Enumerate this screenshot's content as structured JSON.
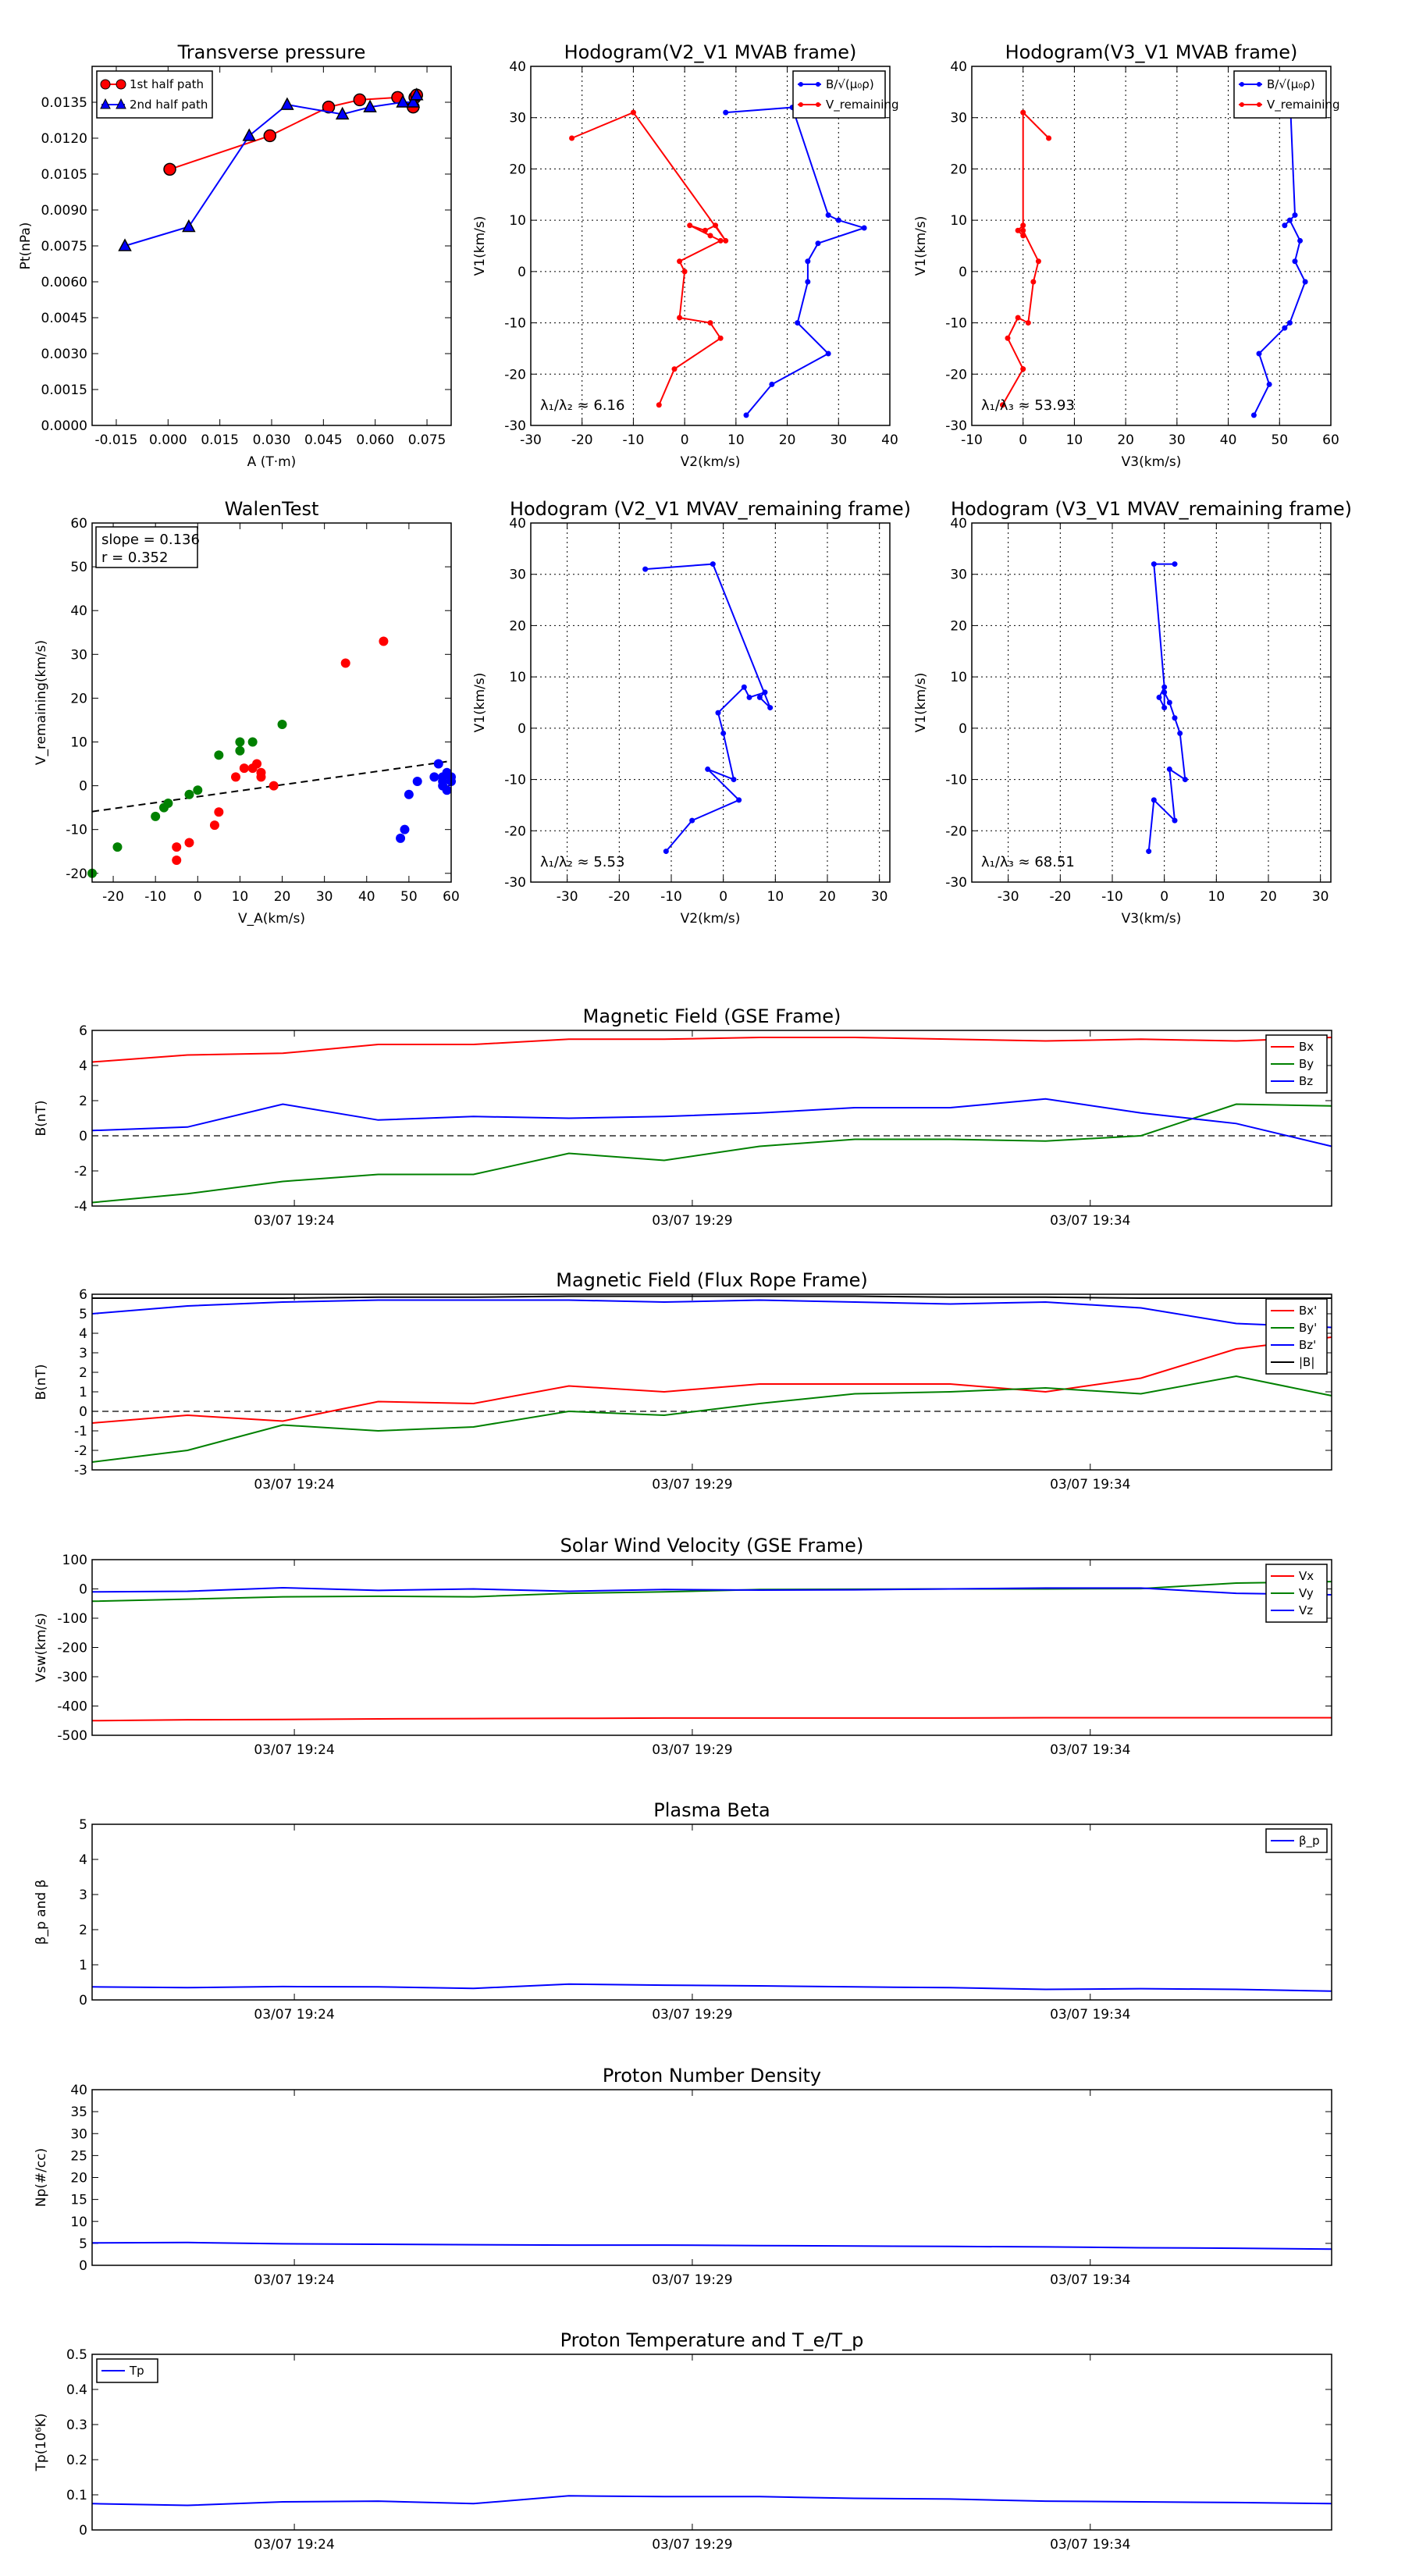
{
  "colors": {
    "red": "#ff0000",
    "green": "#008000",
    "blue": "#0000ff",
    "black": "#000000"
  },
  "time_ticks": [
    "03/07 19:24",
    "03/07 19:29",
    "03/07 19:34"
  ],
  "chart_data": [
    {
      "id": "tp",
      "type": "line",
      "title": "Transverse pressure",
      "xlabel": "A (T·m)",
      "ylabel": "Pt(nPa)",
      "xlim": [
        -0.022,
        0.082
      ],
      "ylim": [
        0,
        0.015
      ],
      "xticks": [
        "-0.015",
        "0.000",
        "0.015",
        "0.030",
        "0.045",
        "0.060",
        "0.075"
      ],
      "xtick_values": [
        -0.015,
        0,
        0.015,
        0.03,
        0.045,
        0.06,
        0.075
      ],
      "yticks": [
        "0.0000",
        "0.0015",
        "0.0030",
        "0.0045",
        "0.0060",
        "0.0075",
        "0.0090",
        "0.0105",
        "0.0120",
        "0.0135"
      ],
      "ytick_values": [
        0,
        0.0015,
        0.003,
        0.0045,
        0.006,
        0.0075,
        0.009,
        0.0105,
        0.012,
        0.0135
      ],
      "legend": "upper-left",
      "series": [
        {
          "name": "1st half path",
          "color": "red",
          "marker": "circle",
          "x": [
            0.0005,
            0.0295,
            0.0465,
            0.0555,
            0.0665,
            0.071,
            0.0715,
            0.072
          ],
          "y": [
            0.0107,
            0.0121,
            0.0133,
            0.0136,
            0.0137,
            0.0133,
            0.0137,
            0.0138
          ]
        },
        {
          "name": "2nd half path",
          "color": "blue",
          "marker": "triangle",
          "x": [
            -0.0125,
            0.006,
            0.0235,
            0.0345,
            0.0505,
            0.0585,
            0.068,
            0.071,
            0.072
          ],
          "y": [
            0.0075,
            0.0083,
            0.0121,
            0.0134,
            0.013,
            0.0133,
            0.0135,
            0.0135,
            0.0138
          ]
        }
      ]
    },
    {
      "id": "h1",
      "type": "line",
      "title": "Hodogram(V2_V1 MVAB frame)",
      "xlabel": "V2(km/s)",
      "ylabel": "V1(km/s)",
      "xlim": [
        -30,
        40
      ],
      "ylim": [
        -30,
        40
      ],
      "xtick_values": [
        -30,
        -20,
        -10,
        0,
        10,
        20,
        30,
        40
      ],
      "ytick_values": [
        -30,
        -20,
        -10,
        0,
        10,
        20,
        30,
        40
      ],
      "grid": true,
      "legend": "upper-right",
      "annotation": "λ₁/λ₂ ≈ 6.16",
      "series": [
        {
          "name": "B/√(μ₀ρ)",
          "color": "blue",
          "marker": "dot",
          "x": [
            8,
            21,
            28,
            30,
            35,
            26,
            24,
            24,
            22,
            28,
            17,
            12
          ],
          "y": [
            31,
            32,
            11,
            10,
            8.5,
            5.5,
            2,
            -2,
            -10,
            -16,
            -22,
            -28
          ]
        },
        {
          "name": "V_remaining",
          "color": "red",
          "marker": "dot",
          "x": [
            -22,
            -10,
            8,
            6,
            4,
            1,
            5,
            7,
            -1,
            0,
            -1,
            5,
            7,
            -2,
            -5
          ],
          "y": [
            26,
            31,
            6,
            9,
            8,
            9,
            7,
            6,
            2,
            0,
            -9,
            -10,
            -13,
            -19,
            -26
          ]
        }
      ]
    },
    {
      "id": "h2",
      "type": "line",
      "title": "Hodogram(V3_V1 MVAB frame)",
      "xlabel": "V3(km/s)",
      "ylabel": "V1(km/s)",
      "xlim": [
        -10,
        60
      ],
      "ylim": [
        -30,
        40
      ],
      "xtick_values": [
        -10,
        0,
        10,
        20,
        30,
        40,
        50,
        60
      ],
      "ytick_values": [
        -30,
        -20,
        -10,
        0,
        10,
        20,
        30,
        40
      ],
      "grid": true,
      "legend": "upper-right",
      "annotation": "λ₁/λ₃ ≈ 53.93",
      "series": [
        {
          "name": "B/√(μ₀ρ)",
          "color": "blue",
          "marker": "dot",
          "x": [
            52,
            53,
            51,
            52,
            54,
            53,
            55,
            52,
            51,
            46,
            48,
            45
          ],
          "y": [
            35,
            11,
            9,
            10,
            6,
            2,
            -2,
            -10,
            -11,
            -16,
            -22,
            -28
          ]
        },
        {
          "name": "V_remaining",
          "color": "red",
          "marker": "dot",
          "x": [
            5,
            0,
            0,
            -1,
            0,
            0,
            3,
            2,
            1,
            -1,
            -3,
            0,
            -4
          ],
          "y": [
            26,
            31,
            9,
            8,
            7,
            8,
            2,
            -2,
            -10,
            -9,
            -13,
            -19,
            -26
          ]
        }
      ]
    },
    {
      "id": "walen",
      "type": "scatter",
      "title": "WalenTest",
      "xlabel": "V_A(km/s)",
      "ylabel": "V_remaining(km/s)",
      "xlim": [
        -25,
        60
      ],
      "ylim": [
        -22,
        60
      ],
      "xtick_values": [
        -20,
        -10,
        0,
        10,
        20,
        30,
        40,
        50,
        60
      ],
      "ytick_values": [
        -20,
        -10,
        0,
        10,
        20,
        30,
        40,
        50,
        60
      ],
      "fit": {
        "slope": 0.136,
        "intercept": -2.5,
        "slope_label": "slope = 0.136",
        "r_label": "r = 0.352"
      },
      "series": [
        {
          "color": "green",
          "x": [
            -25,
            -19,
            -10,
            -8,
            -7,
            -2,
            0,
            5,
            10,
            10,
            13,
            20
          ],
          "y": [
            -20,
            -14,
            -7,
            -5,
            -4,
            -2,
            -1,
            7,
            10,
            8,
            10,
            14
          ]
        },
        {
          "color": "red",
          "x": [
            -5,
            -5,
            -2,
            4,
            5,
            9,
            11,
            13,
            14,
            15,
            15,
            18,
            35,
            44
          ],
          "y": [
            -14,
            -17,
            -13,
            -9,
            -6,
            2,
            4,
            4,
            5,
            3,
            2,
            0,
            28,
            33
          ]
        },
        {
          "color": "blue",
          "x": [
            48,
            49,
            50,
            52,
            56,
            57,
            58,
            58,
            58,
            59,
            59,
            60,
            60
          ],
          "y": [
            -12,
            -10,
            -2,
            1,
            2,
            5,
            2,
            1,
            0,
            -1,
            3,
            1,
            2
          ]
        }
      ]
    },
    {
      "id": "h3",
      "type": "line",
      "title": "Hodogram (V2_V1 MVAV_remaining frame)",
      "xlabel": "V2(km/s)",
      "ylabel": "V1(km/s)",
      "xlim": [
        -37,
        32
      ],
      "ylim": [
        -30,
        40
      ],
      "xtick_values": [
        -30,
        -20,
        -10,
        0,
        10,
        20,
        30
      ],
      "ytick_values": [
        -30,
        -20,
        -10,
        0,
        10,
        20,
        30,
        40
      ],
      "grid": true,
      "annotation": "λ₁/λ₂ ≈ 5.53",
      "series": [
        {
          "color": "blue",
          "marker": "dot",
          "x": [
            -15,
            -2,
            9,
            7,
            8,
            5,
            4,
            -1,
            0,
            2,
            -3,
            3,
            -6,
            -11
          ],
          "y": [
            31,
            32,
            4,
            6,
            7,
            6,
            8,
            3,
            -1,
            -10,
            -8,
            -14,
            -18,
            -24
          ]
        }
      ]
    },
    {
      "id": "h4",
      "type": "line",
      "title": "Hodogram (V3_V1 MVAV_remaining frame)",
      "xlabel": "V3(km/s)",
      "ylabel": "V1(km/s)",
      "xlim": [
        -37,
        32
      ],
      "ylim": [
        -30,
        40
      ],
      "xtick_values": [
        -30,
        -20,
        -10,
        0,
        10,
        20,
        30
      ],
      "ytick_values": [
        -30,
        -20,
        -10,
        0,
        10,
        20,
        30,
        40
      ],
      "grid": true,
      "annotation": "λ₁/λ₃ ≈ 68.51",
      "series": [
        {
          "color": "blue",
          "marker": "dot",
          "x": [
            2,
            -2,
            0,
            -1,
            0,
            0,
            1,
            2,
            3,
            4,
            1,
            2,
            -2,
            -3
          ],
          "y": [
            32,
            32,
            8,
            6,
            4,
            7,
            5,
            2,
            -1,
            -10,
            -8,
            -18,
            -14,
            -24
          ]
        }
      ]
    },
    {
      "id": "bgse",
      "type": "line",
      "title": "Magnetic Field (GSE Frame)",
      "ylabel": "B(nT)",
      "ylim": [
        -4,
        6
      ],
      "ytick_values": [
        -4,
        -2,
        0,
        2,
        4,
        6
      ],
      "zero_line": true,
      "legend": "upper-right",
      "x": [
        0,
        1,
        2,
        3,
        4,
        5,
        6,
        7,
        8,
        9,
        10,
        11,
        12,
        13
      ],
      "series": [
        {
          "name": "Bx",
          "color": "red",
          "values": [
            4.2,
            4.6,
            4.7,
            5.2,
            5.2,
            5.5,
            5.5,
            5.6,
            5.6,
            5.5,
            5.4,
            5.5,
            5.4,
            5.6
          ]
        },
        {
          "name": "By",
          "color": "green",
          "values": [
            -3.8,
            -3.3,
            -2.6,
            -2.2,
            -2.2,
            -1.0,
            -1.4,
            -0.6,
            -0.2,
            -0.2,
            -0.3,
            0.0,
            1.8,
            1.7
          ]
        },
        {
          "name": "Bz",
          "color": "blue",
          "values": [
            0.3,
            0.5,
            1.8,
            0.9,
            1.1,
            1.0,
            1.1,
            1.3,
            1.6,
            1.6,
            2.1,
            1.3,
            0.7,
            -0.6
          ]
        }
      ]
    },
    {
      "id": "bfr",
      "type": "line",
      "title": "Magnetic Field (Flux Rope Frame)",
      "ylabel": "B(nT)",
      "ylim": [
        -3,
        6
      ],
      "ytick_values": [
        -3,
        -2,
        -1,
        0,
        1,
        2,
        3,
        4,
        5,
        6
      ],
      "zero_line": true,
      "legend": "upper-right",
      "x": [
        0,
        1,
        2,
        3,
        4,
        5,
        6,
        7,
        8,
        9,
        10,
        11,
        12,
        13
      ],
      "series": [
        {
          "name": "Bx'",
          "color": "red",
          "values": [
            -0.6,
            -0.2,
            -0.5,
            0.5,
            0.4,
            1.3,
            1.0,
            1.4,
            1.4,
            1.4,
            1.0,
            1.7,
            3.2,
            3.8
          ]
        },
        {
          "name": "By'",
          "color": "green",
          "values": [
            -2.6,
            -2.0,
            -0.7,
            -1.0,
            -0.8,
            0.0,
            -0.2,
            0.4,
            0.9,
            1.0,
            1.2,
            0.9,
            1.8,
            0.8
          ]
        },
        {
          "name": "Bz'",
          "color": "blue",
          "values": [
            5.0,
            5.4,
            5.6,
            5.7,
            5.7,
            5.7,
            5.6,
            5.7,
            5.6,
            5.5,
            5.6,
            5.3,
            4.5,
            4.3
          ]
        },
        {
          "name": "|B|",
          "color": "black",
          "values": [
            5.8,
            5.8,
            5.8,
            5.85,
            5.85,
            5.9,
            5.9,
            5.9,
            5.9,
            5.85,
            5.85,
            5.8,
            5.8,
            5.8
          ]
        }
      ]
    },
    {
      "id": "vel",
      "type": "line",
      "title": "Solar Wind Velocity (GSE Frame)",
      "ylabel": "Vsw(km/s)",
      "ylim": [
        -500,
        100
      ],
      "ytick_values": [
        -500,
        -400,
        -300,
        -200,
        -100,
        0,
        100
      ],
      "legend": "upper-right",
      "x": [
        0,
        1,
        2,
        3,
        4,
        5,
        6,
        7,
        8,
        9,
        10,
        11,
        12,
        13
      ],
      "series": [
        {
          "name": "Vx",
          "color": "red",
          "values": [
            -450,
            -447,
            -446,
            -444,
            -443,
            -442,
            -441,
            -441,
            -441,
            -441,
            -440,
            -440,
            -440,
            -440
          ]
        },
        {
          "name": "Vy",
          "color": "green",
          "values": [
            -42,
            -35,
            -27,
            -25,
            -27,
            -15,
            -10,
            -2,
            -1,
            0,
            0,
            1,
            20,
            25
          ]
        },
        {
          "name": "Vz",
          "color": "blue",
          "values": [
            -10,
            -8,
            4,
            -5,
            0,
            -8,
            -2,
            -4,
            -3,
            0,
            3,
            3,
            -15,
            -20
          ]
        }
      ]
    },
    {
      "id": "beta",
      "type": "line",
      "title": "Plasma Beta",
      "ylabel": "β_p and β",
      "ylim": [
        0,
        5
      ],
      "ytick_values": [
        0,
        1,
        2,
        3,
        4,
        5
      ],
      "legend": "upper-right",
      "x": [
        0,
        1,
        2,
        3,
        4,
        5,
        6,
        7,
        8,
        9,
        10,
        11,
        12,
        13
      ],
      "series": [
        {
          "name": "β_p",
          "color": "blue",
          "values": [
            0.37,
            0.35,
            0.38,
            0.37,
            0.33,
            0.45,
            0.42,
            0.4,
            0.37,
            0.35,
            0.3,
            0.32,
            0.3,
            0.25
          ]
        }
      ]
    },
    {
      "id": "np",
      "type": "line",
      "title": "Proton Number Density",
      "ylabel": "Np(#/cc)",
      "ylim": [
        0,
        40
      ],
      "ytick_values": [
        0,
        5,
        10,
        15,
        20,
        25,
        30,
        35,
        40
      ],
      "x": [
        0,
        1,
        2,
        3,
        4,
        5,
        6,
        7,
        8,
        9,
        10,
        11,
        12,
        13
      ],
      "series": [
        {
          "name": "Np",
          "color": "blue",
          "values": [
            5.1,
            5.2,
            4.9,
            4.8,
            4.7,
            4.6,
            4.6,
            4.5,
            4.4,
            4.3,
            4.2,
            4.0,
            3.9,
            3.7
          ]
        }
      ]
    },
    {
      "id": "tpp",
      "type": "line",
      "title": "Proton Temperature and T_e/T_p",
      "ylabel": "Tp(10⁶K)",
      "ylim": [
        0,
        0.5
      ],
      "ytick_values": [
        0,
        0.1,
        0.2,
        0.3,
        0.4,
        0.5
      ],
      "legend": "upper-left",
      "x": [
        0,
        1,
        2,
        3,
        4,
        5,
        6,
        7,
        8,
        9,
        10,
        11,
        12,
        13
      ],
      "series": [
        {
          "name": "Tp",
          "color": "blue",
          "values": [
            0.075,
            0.07,
            0.08,
            0.082,
            0.075,
            0.097,
            0.095,
            0.095,
            0.09,
            0.088,
            0.082,
            0.08,
            0.078,
            0.075
          ]
        }
      ]
    }
  ]
}
